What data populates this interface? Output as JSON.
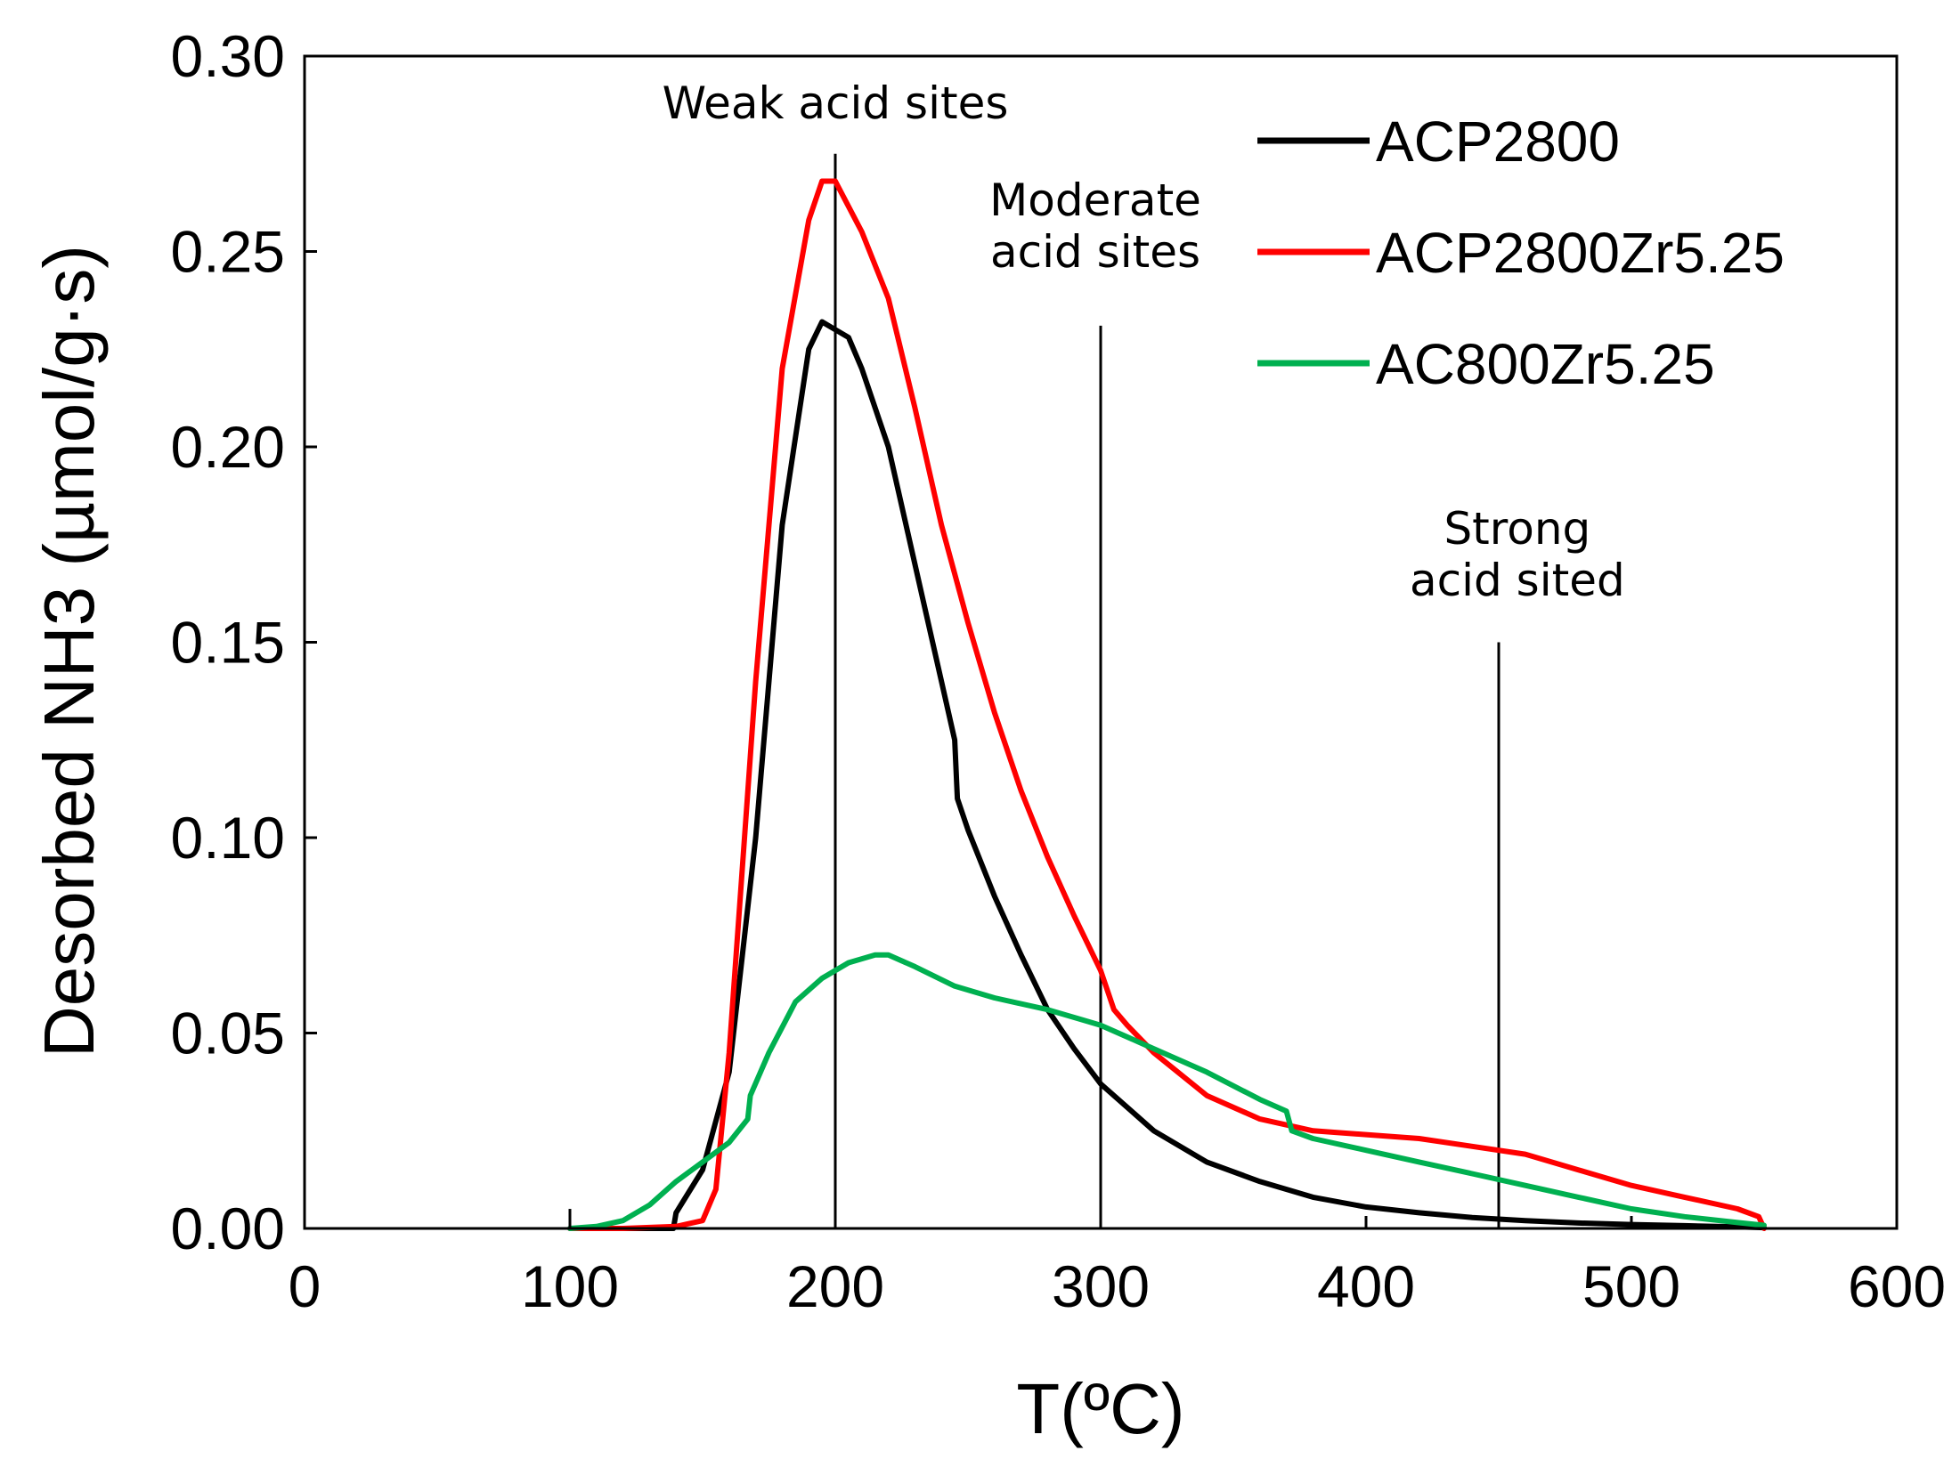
{
  "chart_data": {
    "type": "line",
    "title": "",
    "xlabel": "T(ºC)",
    "ylabel": "Desorbed NH3 (µmol/g·s)",
    "xlim": [
      0,
      600
    ],
    "ylim": [
      0,
      0.3
    ],
    "xticks": [
      0,
      100,
      200,
      300,
      400,
      500,
      600
    ],
    "xtick_labels": [
      "0",
      "100",
      "200",
      "300",
      "400",
      "500",
      "600"
    ],
    "yticks": [
      0,
      0.05,
      0.1,
      0.15,
      0.2,
      0.25,
      0.3
    ],
    "ytick_labels": [
      "0.00",
      "0.05",
      "0.10",
      "0.15",
      "0.20",
      "0.25",
      "0.30"
    ],
    "grid": false,
    "legend_position": "top-right",
    "series": [
      {
        "name": "ACP2800",
        "color": "#000000",
        "x": [
          100,
          120,
          139,
          140,
          150,
          160,
          170,
          180,
          190,
          195,
          200,
          205,
          210,
          220,
          230,
          240,
          245,
          246,
          250,
          260,
          270,
          280,
          290,
          300,
          320,
          340,
          360,
          380,
          400,
          420,
          440,
          460,
          480,
          500,
          520,
          540,
          550
        ],
        "y": [
          0,
          0,
          0,
          0.004,
          0.015,
          0.04,
          0.1,
          0.18,
          0.225,
          0.232,
          0.23,
          0.228,
          0.22,
          0.2,
          0.17,
          0.14,
          0.125,
          0.11,
          0.102,
          0.085,
          0.07,
          0.056,
          0.046,
          0.037,
          0.025,
          0.017,
          0.012,
          0.008,
          0.0055,
          0.004,
          0.0028,
          0.002,
          0.0014,
          0.001,
          0.0007,
          0.0004,
          0.0002
        ]
      },
      {
        "name": "ACP2800Zr5.25",
        "color": "#ff0000",
        "x": [
          100,
          120,
          140,
          150,
          155,
          160,
          170,
          180,
          190,
          195,
          200,
          210,
          220,
          230,
          240,
          250,
          260,
          270,
          280,
          290,
          300,
          305,
          310,
          320,
          340,
          360,
          380,
          400,
          420,
          440,
          460,
          480,
          500,
          520,
          540,
          548,
          550
        ],
        "y": [
          0,
          0,
          0.0005,
          0.002,
          0.01,
          0.045,
          0.14,
          0.22,
          0.258,
          0.268,
          0.268,
          0.255,
          0.238,
          0.21,
          0.18,
          0.155,
          0.132,
          0.112,
          0.095,
          0.08,
          0.066,
          0.056,
          0.052,
          0.045,
          0.034,
          0.028,
          0.025,
          0.024,
          0.023,
          0.021,
          0.019,
          0.015,
          0.011,
          0.008,
          0.005,
          0.003,
          0
        ]
      },
      {
        "name": "AC800Zr5.25",
        "color": "#00b050",
        "x": [
          100,
          110,
          120,
          130,
          140,
          150,
          160,
          167,
          168,
          175,
          185,
          195,
          205,
          215,
          220,
          230,
          245,
          260,
          280,
          300,
          320,
          340,
          360,
          370,
          372,
          380,
          400,
          420,
          440,
          460,
          480,
          500,
          520,
          540,
          550
        ],
        "y": [
          0,
          0.0005,
          0.002,
          0.006,
          0.012,
          0.017,
          0.022,
          0.028,
          0.034,
          0.045,
          0.058,
          0.064,
          0.068,
          0.07,
          0.07,
          0.067,
          0.062,
          0.059,
          0.056,
          0.052,
          0.046,
          0.04,
          0.033,
          0.03,
          0.025,
          0.023,
          0.02,
          0.017,
          0.014,
          0.011,
          0.008,
          0.005,
          0.003,
          0.0015,
          0.0008
        ]
      }
    ],
    "reference_lines": [
      {
        "x": 200,
        "y_top": 0.275
      },
      {
        "x": 300,
        "y_top": 0.231
      },
      {
        "x": 450,
        "y_top": 0.15
      }
    ],
    "annotations": [
      {
        "x": 200,
        "y": 0.284,
        "lines": [
          "Weak acid sites"
        ]
      },
      {
        "x": 298,
        "y": 0.246,
        "lines": [
          "Moderate",
          "acid sites"
        ]
      },
      {
        "x": 457,
        "y": 0.162,
        "lines": [
          "Strong",
          "acid sited"
        ]
      }
    ],
    "small_tick_at_start": {
      "x": 100,
      "y_top": 0.005
    }
  }
}
